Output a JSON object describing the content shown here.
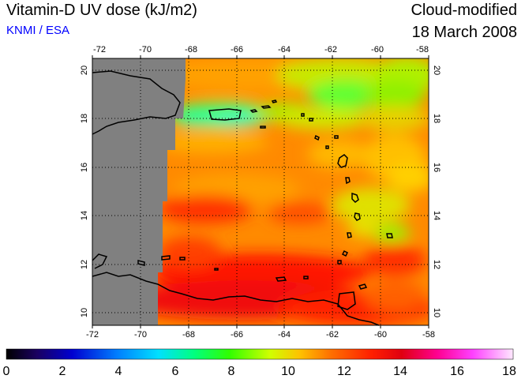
{
  "header": {
    "title": "Vitamin-D UV dose (kJ/m2)",
    "source": "KNMI / ESA",
    "product": "Cloud-modified",
    "date": "18 March 2008"
  },
  "map": {
    "lon_range": [
      -72,
      -58
    ],
    "lat_range": [
      9.5,
      20.5
    ],
    "lon_ticks": [
      "-72",
      "-70",
      "-68",
      "-66",
      "-64",
      "-62",
      "-60",
      "-58"
    ],
    "lat_ticks": [
      "10",
      "12",
      "14",
      "16",
      "18",
      "20"
    ],
    "no_data_color": "#808080",
    "grid": "dotted"
  },
  "colorbar": {
    "labels": [
      "0",
      "2",
      "4",
      "6",
      "8",
      "10",
      "12",
      "14",
      "16",
      "18"
    ],
    "range": [
      0,
      18
    ]
  }
}
